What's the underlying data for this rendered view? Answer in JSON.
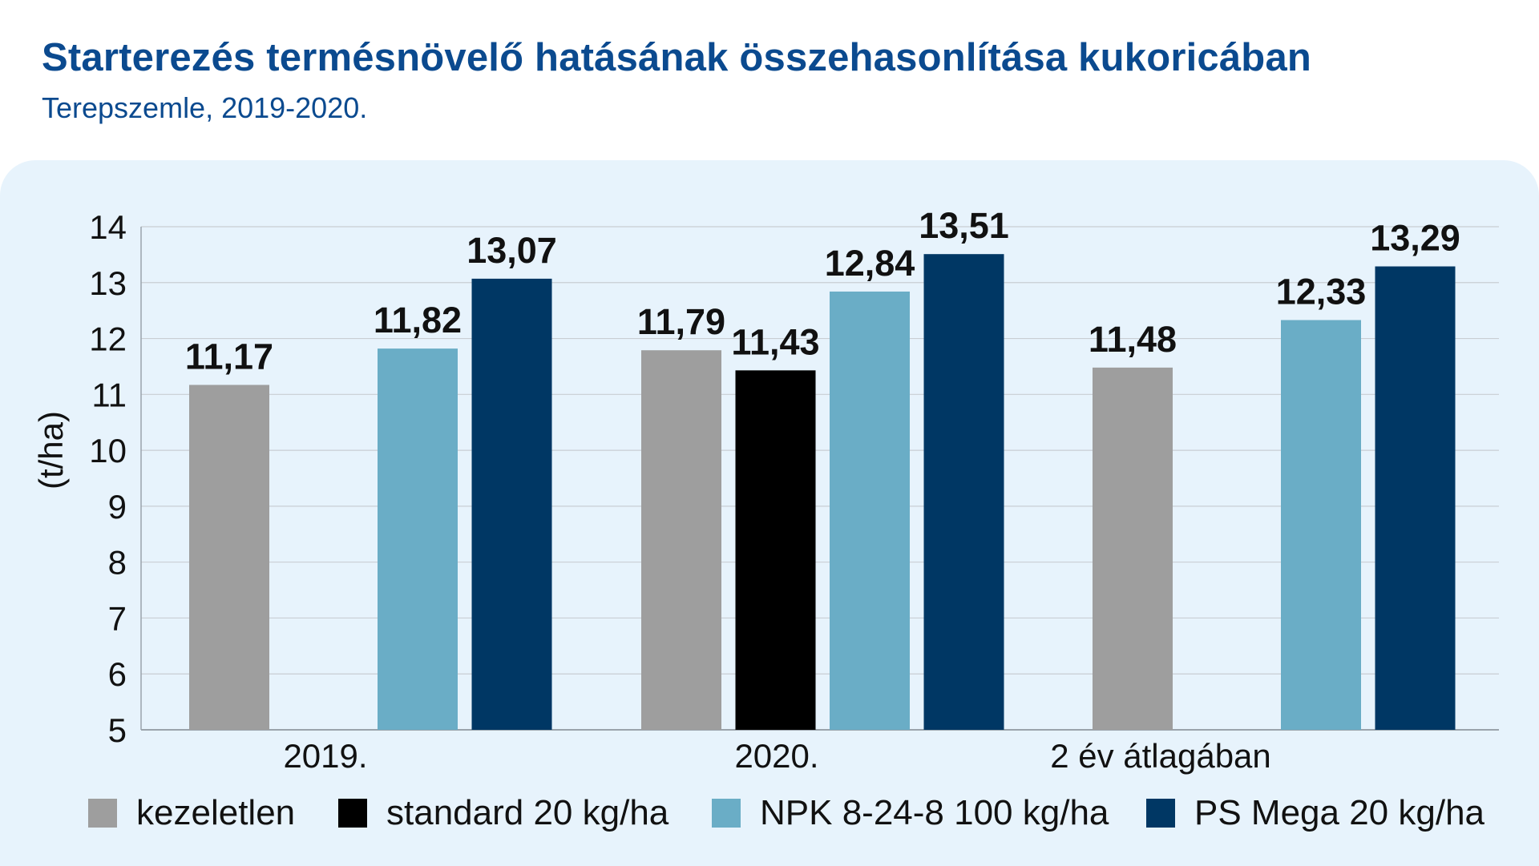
{
  "title": "Starterezés termésnövelő hatásának összehasonlítása kukoricában",
  "subtitle": "Terepszemle, 2019-2020.",
  "colors": {
    "title": "#0b4a8f",
    "panel": "#e7f3fc",
    "kezeletlen": "#9e9e9e",
    "standard": "#000000",
    "npk": "#6aadc6",
    "psmega": "#003764"
  },
  "chart_data": {
    "type": "bar",
    "categories": [
      "2019.",
      "2020.",
      "2 év átlagában"
    ],
    "series": [
      {
        "name": "kezeletlen",
        "values": [
          11.17,
          11.79,
          11.48
        ],
        "labels": [
          "11,17",
          "11,79",
          "11,48"
        ]
      },
      {
        "name": "standard 20 kg/ha",
        "values": [
          null,
          11.43,
          null
        ],
        "labels": [
          "",
          "11,43",
          ""
        ]
      },
      {
        "name": "NPK 8-24-8 100 kg/ha",
        "values": [
          11.82,
          12.84,
          12.33
        ],
        "labels": [
          "11,82",
          "12,84",
          "12,33"
        ]
      },
      {
        "name": "PS Mega 20 kg/ha",
        "values": [
          13.07,
          13.51,
          13.29
        ],
        "labels": [
          "13,07",
          "13,51",
          "13,29"
        ]
      }
    ],
    "ylabel": "(t/ha)",
    "ylim": [
      5,
      14
    ],
    "yticks": [
      "5",
      "6",
      "7",
      "8",
      "9",
      "10",
      "11",
      "12",
      "13",
      "14"
    ],
    "grid": true,
    "legend": "bottom"
  }
}
